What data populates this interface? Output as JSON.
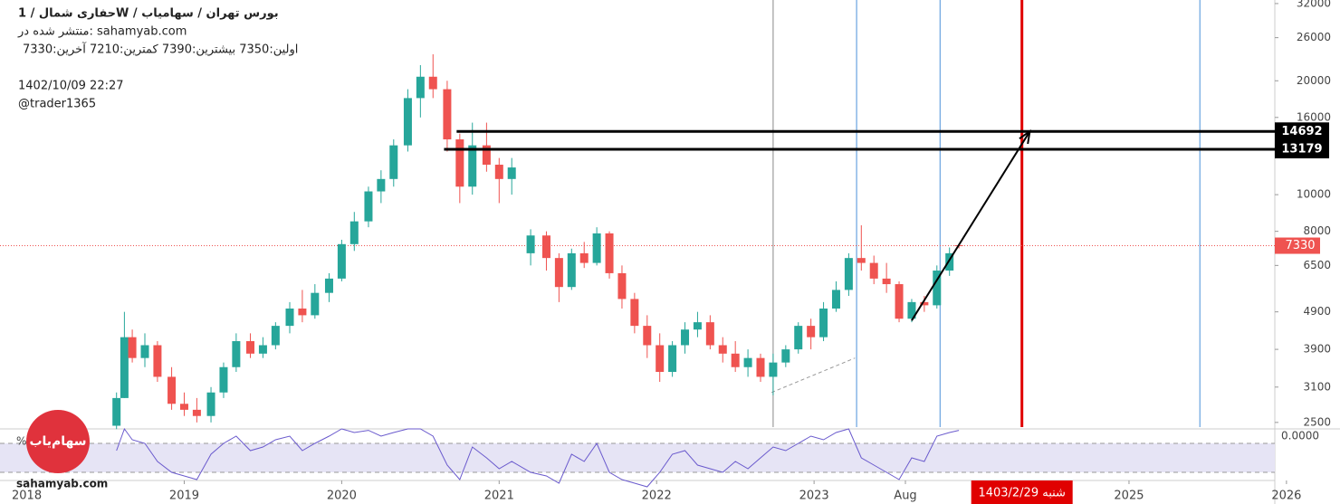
{
  "chart_data": {
    "type": "candlestick",
    "title": "حفاری شمال / 1W / بورس تهران / سهامیاب",
    "published": "منتشر شده در: sahamyab.com",
    "ohlc_text": "اولین:7350  بیشترین:7390  کمترین:7210  آخرین:7330",
    "timestamp": "1402/10/09 22:27",
    "author": "@trader1365",
    "watermark": "sahamyab.com",
    "logo": "سهام‌یاب",
    "up_color": "#26a69a",
    "down_color": "#ef5350",
    "log_scale": true,
    "ylim": [
      2430,
      32700
    ],
    "yticks": [
      2500,
      3100,
      3900,
      4900,
      6500,
      8000,
      10000,
      16000,
      20000,
      26000,
      32000
    ],
    "xlim": [
      2017.83,
      2026.11
    ],
    "xticks": [
      2018,
      2019,
      2020,
      2021,
      2022,
      2023,
      {
        "value": 2023.58,
        "label": "Aug"
      },
      2025,
      2026
    ],
    "ohlc": [
      [
        2018.57,
        2450,
        3000,
        2400,
        2900
      ],
      [
        2018.62,
        2900,
        4900,
        2900,
        4200
      ],
      [
        2018.67,
        4200,
        4400,
        3600,
        3700
      ],
      [
        2018.75,
        3700,
        4300,
        3500,
        4000
      ],
      [
        2018.83,
        4000,
        4100,
        3200,
        3300
      ],
      [
        2018.92,
        3300,
        3500,
        2700,
        2800
      ],
      [
        2019.0,
        2800,
        3000,
        2600,
        2700
      ],
      [
        2019.08,
        2700,
        2900,
        2500,
        2600
      ],
      [
        2019.17,
        2600,
        3100,
        2500,
        3000
      ],
      [
        2019.25,
        3000,
        3600,
        2900,
        3500
      ],
      [
        2019.33,
        3500,
        4300,
        3400,
        4100
      ],
      [
        2019.42,
        4100,
        4300,
        3700,
        3800
      ],
      [
        2019.5,
        3800,
        4200,
        3700,
        4000
      ],
      [
        2019.58,
        4000,
        4600,
        3900,
        4500
      ],
      [
        2019.67,
        4500,
        5200,
        4300,
        5000
      ],
      [
        2019.75,
        5000,
        5600,
        4600,
        4800
      ],
      [
        2019.83,
        4800,
        5800,
        4700,
        5500
      ],
      [
        2019.92,
        5500,
        6200,
        5200,
        6000
      ],
      [
        2020.0,
        6000,
        7600,
        5900,
        7400
      ],
      [
        2020.08,
        7400,
        9000,
        7100,
        8500
      ],
      [
        2020.17,
        8500,
        10500,
        8200,
        10200
      ],
      [
        2020.25,
        10200,
        11600,
        9500,
        11000
      ],
      [
        2020.33,
        11000,
        14000,
        10500,
        13500
      ],
      [
        2020.42,
        13500,
        19000,
        13000,
        18000
      ],
      [
        2020.5,
        18000,
        22000,
        16000,
        20500
      ],
      [
        2020.58,
        20500,
        23500,
        18000,
        19000
      ],
      [
        2020.67,
        19000,
        20000,
        13000,
        14000
      ],
      [
        2020.75,
        14000,
        14500,
        9500,
        10500
      ],
      [
        2020.83,
        10500,
        15500,
        10000,
        13500
      ],
      [
        2020.92,
        13500,
        15500,
        11500,
        12000
      ],
      [
        2021.0,
        12000,
        12500,
        9500,
        11000
      ],
      [
        2021.08,
        11000,
        12500,
        10000,
        11800
      ],
      [
        2021.2,
        7000,
        8100,
        6500,
        7800
      ],
      [
        2021.3,
        7800,
        8000,
        6300,
        6800
      ],
      [
        2021.38,
        6800,
        7000,
        5200,
        5700
      ],
      [
        2021.46,
        5700,
        7200,
        5600,
        7000
      ],
      [
        2021.54,
        7000,
        7500,
        6400,
        6600
      ],
      [
        2021.62,
        6600,
        8200,
        6500,
        7900
      ],
      [
        2021.7,
        7900,
        8000,
        6000,
        6200
      ],
      [
        2021.78,
        6200,
        6500,
        5000,
        5300
      ],
      [
        2021.86,
        5300,
        5500,
        4300,
        4500
      ],
      [
        2021.94,
        4500,
        4800,
        3700,
        4000
      ],
      [
        2022.02,
        4000,
        4300,
        3200,
        3400
      ],
      [
        2022.1,
        3400,
        4100,
        3300,
        4000
      ],
      [
        2022.18,
        4000,
        4600,
        3800,
        4400
      ],
      [
        2022.26,
        4400,
        4900,
        4200,
        4600
      ],
      [
        2022.34,
        4600,
        4800,
        3900,
        4000
      ],
      [
        2022.42,
        4000,
        4200,
        3600,
        3800
      ],
      [
        2022.5,
        3800,
        4100,
        3400,
        3500
      ],
      [
        2022.58,
        3500,
        3900,
        3300,
        3700
      ],
      [
        2022.66,
        3700,
        3800,
        3200,
        3300
      ],
      [
        2022.74,
        3300,
        3800,
        2950,
        3600
      ],
      [
        2022.82,
        3600,
        4000,
        3500,
        3900
      ],
      [
        2022.9,
        3900,
        4600,
        3800,
        4500
      ],
      [
        2022.98,
        4500,
        4700,
        3900,
        4200
      ],
      [
        2023.06,
        4200,
        5200,
        4100,
        5000
      ],
      [
        2023.14,
        5000,
        5900,
        4900,
        5600
      ],
      [
        2023.22,
        5600,
        7000,
        5400,
        6800
      ],
      [
        2023.3,
        6800,
        8300,
        6300,
        6600
      ],
      [
        2023.38,
        6600,
        6900,
        5800,
        6000
      ],
      [
        2023.46,
        6000,
        6600,
        5500,
        5800
      ],
      [
        2023.54,
        5800,
        5900,
        4600,
        4700
      ],
      [
        2023.62,
        4700,
        5300,
        4600,
        5200
      ],
      [
        2023.7,
        5200,
        5400,
        4900,
        5100
      ],
      [
        2023.78,
        5100,
        6500,
        5000,
        6300
      ],
      [
        2023.86,
        6300,
        7250,
        6100,
        7000
      ],
      [
        2023.92,
        7350,
        7390,
        7210,
        7330
      ]
    ],
    "last_price": 7330,
    "last_color": "#ef5350",
    "hlines": [
      {
        "value": 14692,
        "from": 2020.73
      },
      {
        "value": 13179,
        "from": 2020.65
      }
    ],
    "vlines": [
      {
        "x": 2022.74,
        "color": "#888888"
      },
      {
        "x": 2023.27,
        "color": "#4a90d9"
      },
      {
        "x": 2023.8,
        "color": "#4a90d9"
      },
      {
        "x": 2025.45,
        "color": "#4a90d9"
      },
      {
        "x": 2024.32,
        "color": "#e00000",
        "label": "1403/2/29 شنبه"
      }
    ],
    "arrow": {
      "x": [
        2023.62,
        2024.37
      ],
      "y": [
        4650,
        14700
      ]
    },
    "trend_dashed": {
      "x": [
        2022.73,
        2023.26
      ],
      "y": [
        3000,
        3700
      ]
    },
    "indicator": {
      "label": "0.0000",
      "unit": "%",
      "ylim": [
        20,
        85
      ],
      "band": [
        30,
        70
      ],
      "color": "#6a5acd",
      "values": [
        60,
        90,
        75,
        70,
        45,
        30,
        25,
        20,
        55,
        70,
        80,
        60,
        65,
        75,
        80,
        60,
        70,
        80,
        90,
        85,
        88,
        80,
        85,
        90,
        90,
        80,
        40,
        20,
        65,
        50,
        35,
        45,
        30,
        25,
        15,
        55,
        45,
        70,
        30,
        20,
        15,
        10,
        30,
        55,
        60,
        40,
        35,
        30,
        45,
        35,
        50,
        65,
        60,
        70,
        80,
        75,
        85,
        90,
        50,
        40,
        30,
        20,
        50,
        45,
        80,
        85,
        88
      ]
    }
  }
}
